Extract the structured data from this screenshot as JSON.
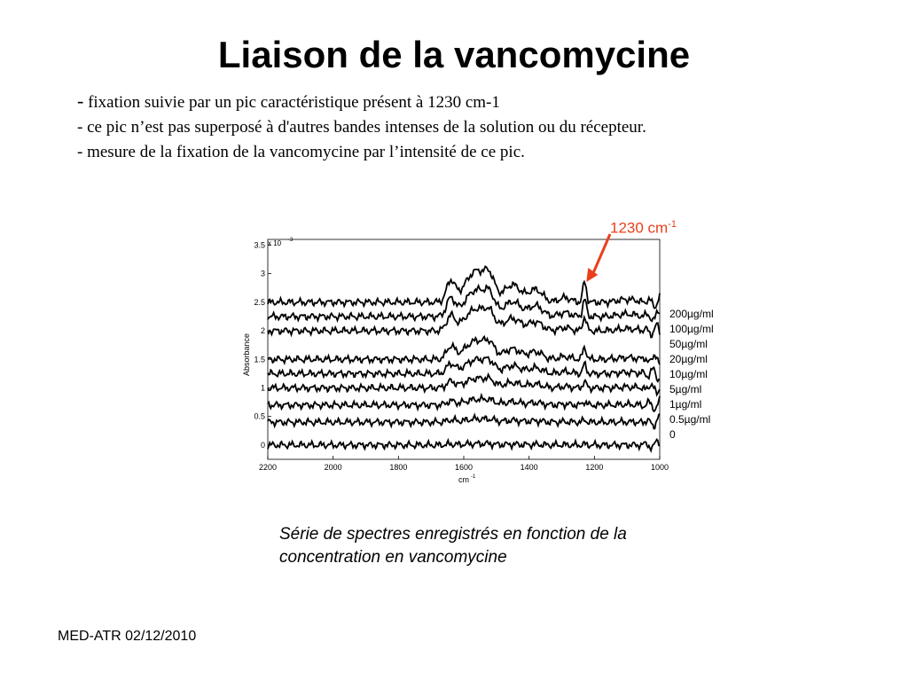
{
  "slide": {
    "title": "Liaison de la vancomycine",
    "bullets": [
      "fixation suivie par un pic caractéristique présent à 1230 cm-1",
      "ce pic n’est pas superposé à d'autres bandes intenses de la solution ou du récepteur.",
      "mesure de la fixation de la vancomycine par l’intensité de ce pic."
    ],
    "bullet_dash": "-",
    "caption": "Série de spectres enregistrés en fonction de la concentration en vancomycine",
    "footer": "MED-ATR 02/12/2010"
  },
  "annotation": {
    "text": "1230 cm",
    "sup": "-1",
    "color": "#e8401c",
    "x": 1230
  },
  "chart_data": {
    "type": "line",
    "xlabel": "cm",
    "xlabel_sup": "-1",
    "ylabel": "Absorbance",
    "y_multiplier_label": "x 10",
    "y_multiplier_sup": "-3",
    "xlim": [
      2200,
      1000
    ],
    "ylim": [
      -0.25,
      3.6
    ],
    "x_ticks": [
      "2200",
      "2000",
      "1800",
      "1600",
      "1400",
      "1200",
      "1000"
    ],
    "x_tick_values": [
      2200,
      2000,
      1800,
      1600,
      1400,
      1200,
      1000
    ],
    "y_ticks": [
      "0",
      "0.5",
      "1",
      "1.5",
      "2",
      "2.5",
      "3",
      "3.5"
    ],
    "y_tick_values": [
      0,
      0.5,
      1,
      1.5,
      2,
      2.5,
      3,
      3.5
    ],
    "line_color": "#000000",
    "legend_position": "right",
    "series": [
      {
        "name": "200µg/ml",
        "baseline": 2.5,
        "amplitude": 1.0
      },
      {
        "name": "100µg/ml",
        "baseline": 2.25,
        "amplitude": 0.85
      },
      {
        "name": "50µg/ml",
        "baseline": 2.0,
        "amplitude": 0.7
      },
      {
        "name": "20µg/ml",
        "baseline": 1.5,
        "amplitude": 0.6
      },
      {
        "name": "10µg/ml",
        "baseline": 1.25,
        "amplitude": 0.45
      },
      {
        "name": "5µg/ml",
        "baseline": 1.0,
        "amplitude": 0.3
      },
      {
        "name": "1µg/ml",
        "baseline": 0.7,
        "amplitude": 0.18
      },
      {
        "name": "0.5µg/ml",
        "baseline": 0.4,
        "amplitude": 0.1
      },
      {
        "name": "0",
        "baseline": 0.0,
        "amplitude": 0.04
      }
    ]
  }
}
